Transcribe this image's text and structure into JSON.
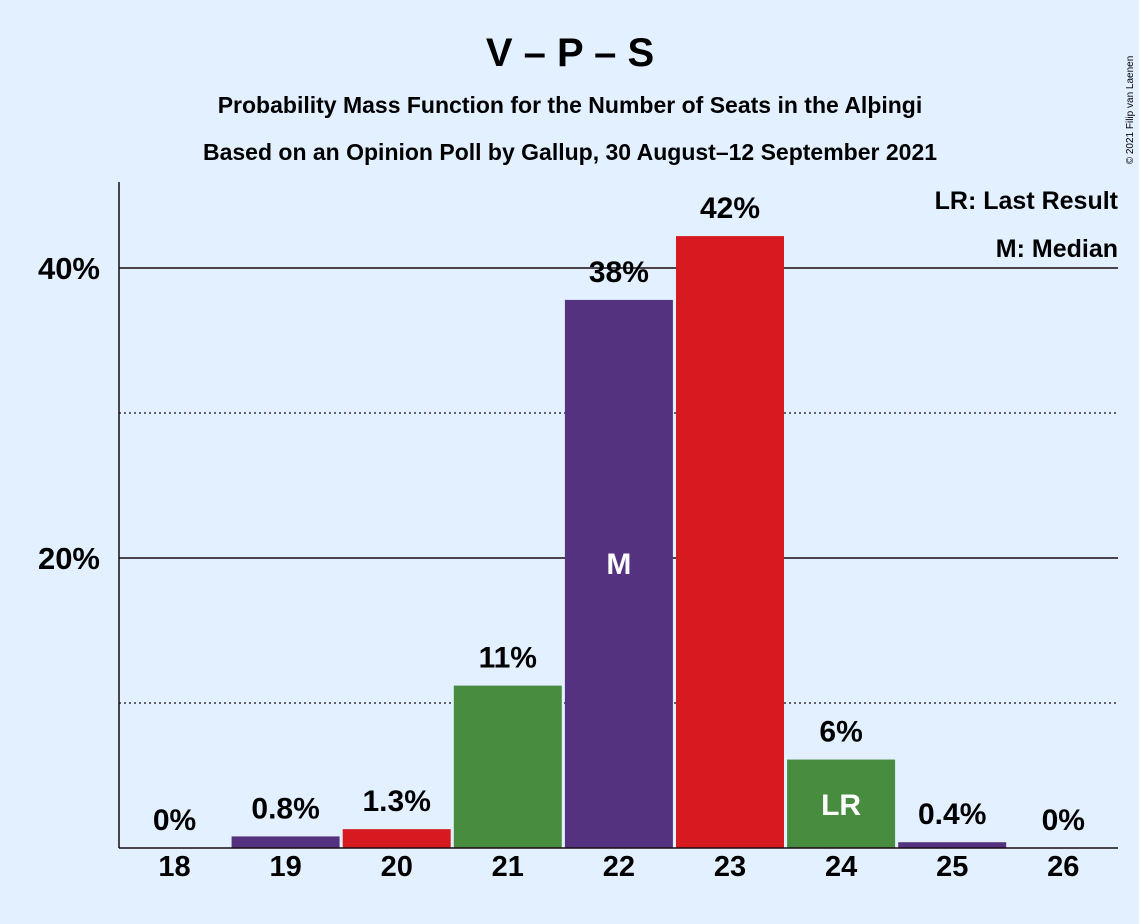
{
  "title": "V – P – S",
  "subtitle1": "Probability Mass Function for the Number of Seats in the Alþingi",
  "subtitle2": "Based on an Opinion Poll by Gallup, 30 August–12 September 2021",
  "copyright": "© 2021 Filip van Laenen",
  "legend": {
    "lr": "LR: Last Result",
    "m": "M: Median"
  },
  "colors": {
    "background": "#e2f0ff",
    "purple": "#553280",
    "red": "#d61a20",
    "green": "#478c3f"
  },
  "chart_data": {
    "type": "bar",
    "categories": [
      "18",
      "19",
      "20",
      "21",
      "22",
      "23",
      "24",
      "25",
      "26"
    ],
    "values": [
      0,
      0.8,
      1.3,
      11.2,
      37.8,
      42.2,
      6.1,
      0.4,
      0
    ],
    "data_labels": [
      "0%",
      "0.8%",
      "1.3%",
      "11%",
      "38%",
      "42%",
      "6%",
      "0.4%",
      "0%"
    ],
    "bar_colors": [
      "#553280",
      "#553280",
      "#d61a20",
      "#478c3f",
      "#553280",
      "#d61a20",
      "#478c3f",
      "#553280",
      "#553280"
    ],
    "in_bar_markers": [
      {
        "category": "22",
        "text": "M"
      },
      {
        "category": "24",
        "text": "LR"
      }
    ],
    "y_ticks": [
      {
        "value": 20,
        "label": "20%"
      },
      {
        "value": 40,
        "label": "40%"
      }
    ],
    "y_minor_ticks": [
      10,
      30
    ],
    "ylim": [
      0,
      46
    ],
    "grid": true
  }
}
